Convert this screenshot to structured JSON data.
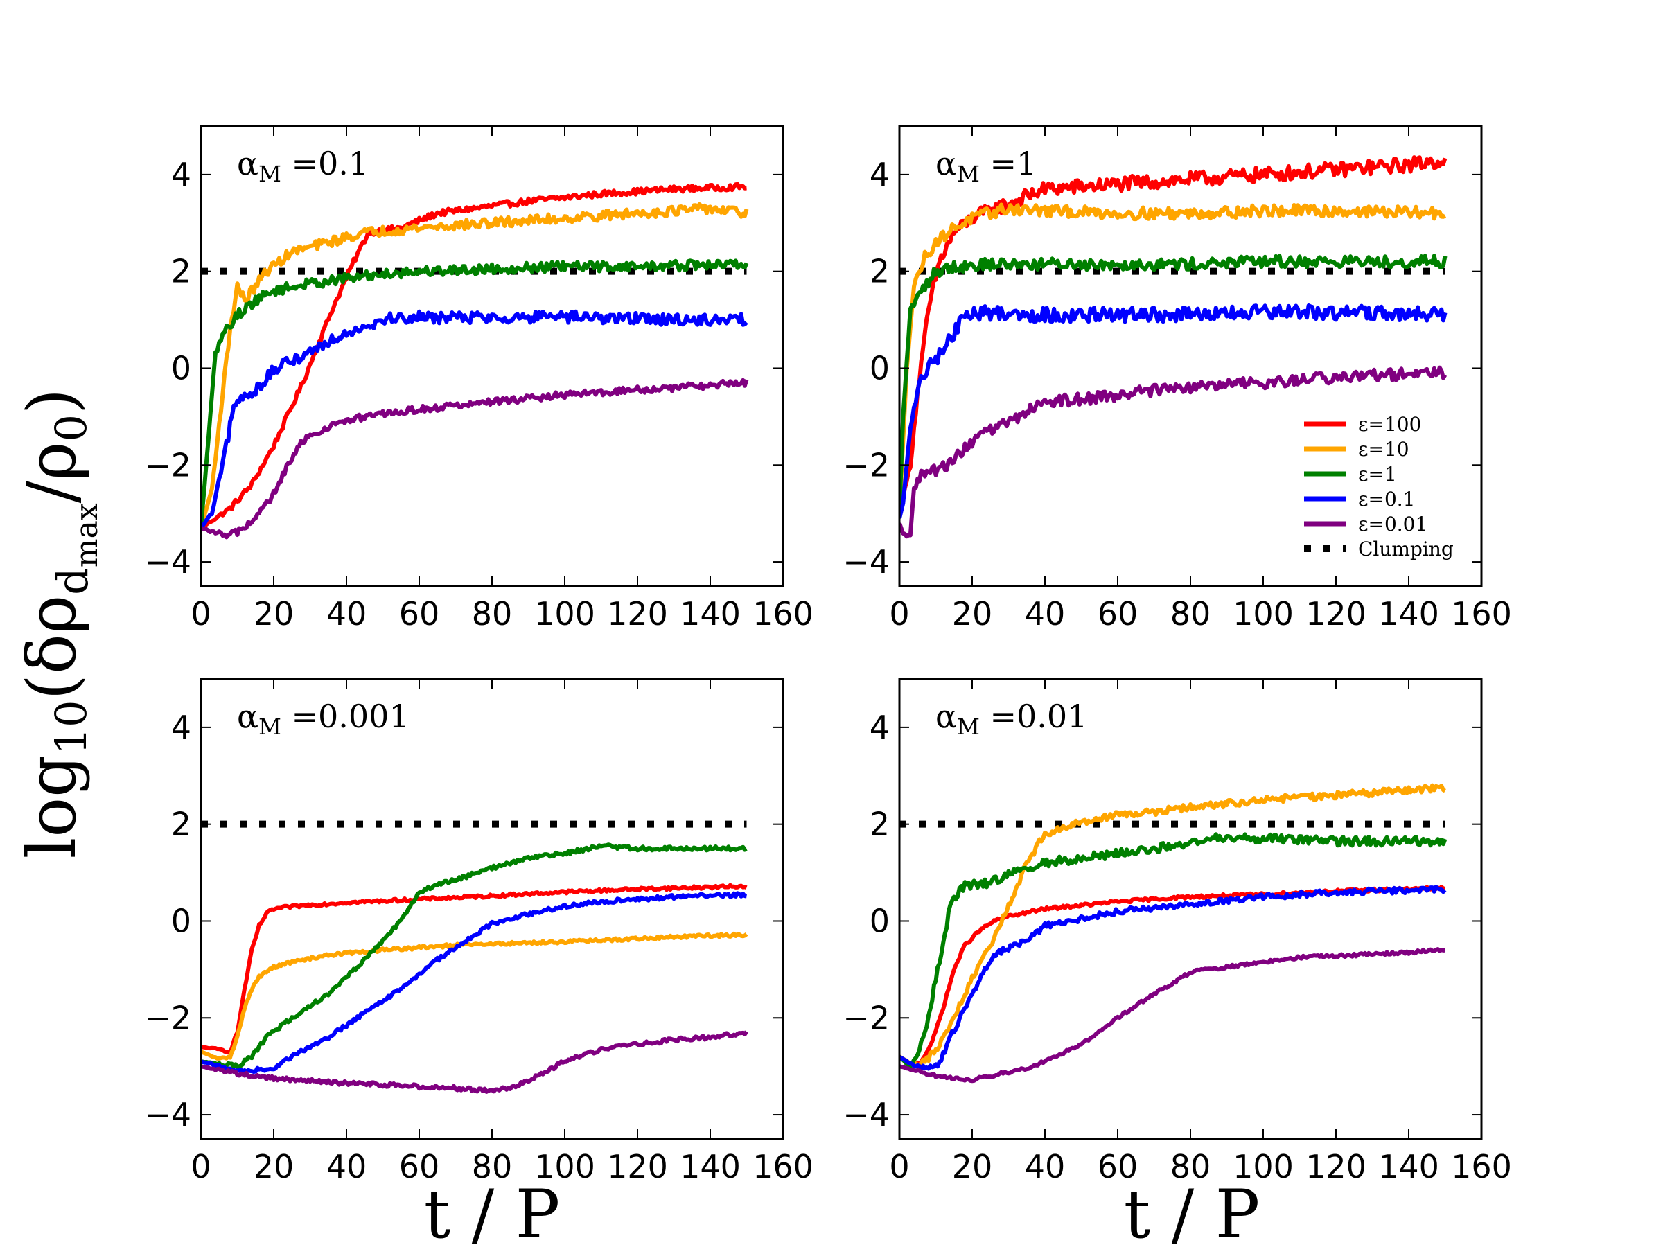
{
  "figure": {
    "ylabel_main": "log",
    "ylabel_sub10": "10",
    "ylabel_open": "(δρ",
    "ylabel_sub_d": "d",
    "ylabel_sub_max": "max",
    "ylabel_slash": "/ρ",
    "ylabel_sub0": "0",
    "ylabel_close": ")",
    "xlabel": "t / P"
  },
  "legend": {
    "entries": [
      {
        "label": "ε=100",
        "color": "#ff0000",
        "style": "solid"
      },
      {
        "label": "ε=10",
        "color": "#ffa500",
        "style": "solid"
      },
      {
        "label": "ε=1",
        "color": "#008000",
        "style": "solid"
      },
      {
        "label": "ε=0.1",
        "color": "#0000ff",
        "style": "solid"
      },
      {
        "label": "ε=0.01",
        "color": "#800080",
        "style": "solid"
      },
      {
        "label": "Clumping",
        "color": "#000000",
        "style": "dotted"
      }
    ]
  },
  "chart_data": [
    {
      "type": "line",
      "panel": "top-left",
      "annotation_prefix": "α",
      "annotation_sub": "M",
      "annotation_value": " =0.1",
      "xlim": [
        0,
        160
      ],
      "ylim": [
        -4.5,
        5
      ],
      "xticks": [
        0,
        20,
        40,
        60,
        80,
        100,
        120,
        140,
        160
      ],
      "yticks": [
        -4,
        -2,
        0,
        2,
        4
      ],
      "clumping_threshold": 2,
      "series": [
        {
          "name": "ε=100",
          "color": "#ff0000",
          "x": [
            0,
            4,
            8,
            14,
            20,
            28,
            36,
            42,
            46,
            55,
            65,
            75,
            90,
            110,
            130,
            150
          ],
          "y": [
            -3.3,
            -3.1,
            -2.9,
            -2.4,
            -1.6,
            -0.3,
            1.2,
            2.2,
            2.8,
            2.9,
            3.2,
            3.3,
            3.45,
            3.6,
            3.7,
            3.75
          ],
          "noise": 0.06
        },
        {
          "name": "ε=10",
          "color": "#ffa500",
          "x": [
            0,
            3,
            6,
            8,
            10,
            12,
            14,
            18,
            25,
            35,
            45,
            60,
            80,
            100,
            120,
            140,
            150
          ],
          "y": [
            -3.3,
            -2.5,
            -0.5,
            0.8,
            1.7,
            1.4,
            1.6,
            2.0,
            2.4,
            2.6,
            2.8,
            2.9,
            3.0,
            3.1,
            3.2,
            3.3,
            3.2
          ],
          "noise": 0.1
        },
        {
          "name": "ε=1",
          "color": "#008000",
          "x": [
            0,
            2,
            4,
            6,
            10,
            15,
            20,
            30,
            40,
            50,
            60,
            80,
            100,
            120,
            150
          ],
          "y": [
            -3.3,
            -1.5,
            0.3,
            0.7,
            1.1,
            1.4,
            1.6,
            1.75,
            1.85,
            1.95,
            2.0,
            2.05,
            2.1,
            2.1,
            2.15
          ],
          "noise": 0.1
        },
        {
          "name": "ε=0.1",
          "color": "#0000ff",
          "x": [
            0,
            3,
            6,
            9,
            10,
            15,
            20,
            30,
            40,
            50,
            55,
            70,
            90,
            110,
            130,
            150
          ],
          "y": [
            -3.3,
            -3.0,
            -2.0,
            -0.8,
            -0.7,
            -0.45,
            -0.05,
            0.35,
            0.75,
            1.0,
            1.05,
            1.05,
            1.05,
            1.05,
            1.0,
            1.0
          ],
          "noise": 0.12
        },
        {
          "name": "ε=0.01",
          "color": "#800080",
          "x": [
            0,
            4,
            8,
            12,
            16,
            20,
            24,
            28,
            35,
            45,
            60,
            80,
            100,
            120,
            140,
            150
          ],
          "y": [
            -3.3,
            -3.4,
            -3.45,
            -3.3,
            -3.0,
            -2.6,
            -2.0,
            -1.5,
            -1.2,
            -1.0,
            -0.85,
            -0.7,
            -0.55,
            -0.45,
            -0.35,
            -0.3
          ],
          "noise": 0.07
        }
      ]
    },
    {
      "type": "line",
      "panel": "top-right",
      "annotation_prefix": "α",
      "annotation_sub": "M",
      "annotation_value": " =1",
      "xlim": [
        0,
        160
      ],
      "ylim": [
        -4.5,
        5
      ],
      "xticks": [
        0,
        20,
        40,
        60,
        80,
        100,
        120,
        140,
        160
      ],
      "yticks": [
        -4,
        -2,
        0,
        2,
        4
      ],
      "clumping_threshold": 2,
      "series": [
        {
          "name": "ε=100",
          "color": "#ff0000",
          "x": [
            0,
            3,
            5,
            8,
            11,
            15,
            20,
            30,
            40,
            60,
            80,
            100,
            120,
            140,
            150
          ],
          "y": [
            -3.0,
            -2.0,
            -0.5,
            1.2,
            2.2,
            2.8,
            3.1,
            3.4,
            3.7,
            3.8,
            3.9,
            4.0,
            4.1,
            4.2,
            4.3
          ],
          "noise": 0.15
        },
        {
          "name": "ε=10",
          "color": "#ffa500",
          "x": [
            0,
            2,
            4,
            7,
            10,
            15,
            20,
            25,
            30,
            40,
            60,
            80,
            100,
            120,
            150
          ],
          "y": [
            -3.0,
            0.0,
            1.7,
            2.3,
            2.6,
            2.9,
            3.1,
            3.2,
            3.3,
            3.25,
            3.2,
            3.2,
            3.25,
            3.25,
            3.2
          ],
          "noise": 0.12
        },
        {
          "name": "ε=1",
          "color": "#008000",
          "x": [
            0,
            1,
            3,
            6,
            10,
            15,
            25,
            40,
            60,
            80,
            100,
            120,
            150
          ],
          "y": [
            -3.0,
            -1.0,
            1.2,
            1.6,
            2.0,
            2.1,
            2.15,
            2.15,
            2.15,
            2.15,
            2.2,
            2.2,
            2.2
          ],
          "noise": 0.12
        },
        {
          "name": "ε=0.1",
          "color": "#0000ff",
          "x": [
            0,
            1,
            3,
            6,
            10,
            14,
            18,
            25,
            40,
            60,
            80,
            100,
            120,
            150
          ],
          "y": [
            -3.1,
            -2.8,
            -1.2,
            -0.2,
            0.2,
            0.6,
            1.1,
            1.15,
            1.1,
            1.1,
            1.1,
            1.15,
            1.15,
            1.1
          ],
          "noise": 0.15
        },
        {
          "name": "ε=0.01",
          "color": "#800080",
          "x": [
            0,
            1,
            2,
            3,
            4,
            6,
            10,
            15,
            20,
            30,
            40,
            55,
            70,
            90,
            110,
            130,
            150
          ],
          "y": [
            -3.2,
            -3.4,
            -3.45,
            -3.45,
            -2.5,
            -2.2,
            -2.1,
            -1.9,
            -1.5,
            -1.1,
            -0.7,
            -0.6,
            -0.45,
            -0.35,
            -0.25,
            -0.15,
            -0.1
          ],
          "noise": 0.12
        }
      ]
    },
    {
      "type": "line",
      "panel": "bottom-left",
      "annotation_prefix": "α",
      "annotation_sub": "M",
      "annotation_value": " =0.001",
      "xlim": [
        0,
        160
      ],
      "ylim": [
        -4.5,
        5
      ],
      "xticks": [
        0,
        20,
        40,
        60,
        80,
        100,
        120,
        140,
        160
      ],
      "yticks": [
        -4,
        -2,
        0,
        2,
        4
      ],
      "clumping_threshold": 2,
      "series": [
        {
          "name": "ε=100",
          "color": "#ff0000",
          "x": [
            0,
            5,
            8,
            10,
            12,
            14,
            16,
            18,
            20,
            25,
            30,
            40,
            60,
            80,
            100,
            120,
            150
          ],
          "y": [
            -2.6,
            -2.65,
            -2.7,
            -2.3,
            -1.4,
            -0.6,
            -0.1,
            0.15,
            0.25,
            0.3,
            0.33,
            0.38,
            0.45,
            0.52,
            0.6,
            0.66,
            0.72
          ],
          "noise": 0.03
        },
        {
          "name": "ε=10",
          "color": "#ffa500",
          "x": [
            0,
            5,
            8,
            10,
            12,
            14,
            16,
            20,
            25,
            35,
            50,
            70,
            90,
            110,
            130,
            150
          ],
          "y": [
            -2.7,
            -2.85,
            -2.8,
            -2.4,
            -1.8,
            -1.4,
            -1.15,
            -0.95,
            -0.85,
            -0.7,
            -0.6,
            -0.5,
            -0.45,
            -0.4,
            -0.33,
            -0.28
          ],
          "noise": 0.03
        },
        {
          "name": "ε=1",
          "color": "#008000",
          "x": [
            0,
            5,
            10,
            14,
            18,
            25,
            35,
            45,
            55,
            60,
            65,
            70,
            80,
            90,
            100,
            110,
            120,
            150
          ],
          "y": [
            -2.9,
            -2.95,
            -3.0,
            -2.8,
            -2.4,
            -2.0,
            -1.5,
            -0.8,
            0.0,
            0.6,
            0.75,
            0.85,
            1.1,
            1.3,
            1.4,
            1.55,
            1.5,
            1.5
          ],
          "noise": 0.04
        },
        {
          "name": "ε=0.1",
          "color": "#0000ff",
          "x": [
            0,
            10,
            20,
            25,
            35,
            45,
            55,
            65,
            75,
            80,
            90,
            100,
            110,
            130,
            150
          ],
          "y": [
            -2.9,
            -3.1,
            -3.05,
            -2.8,
            -2.4,
            -1.9,
            -1.4,
            -0.8,
            -0.3,
            -0.05,
            0.15,
            0.3,
            0.4,
            0.5,
            0.55
          ],
          "noise": 0.04
        },
        {
          "name": "ε=0.01",
          "color": "#800080",
          "x": [
            0,
            10,
            20,
            30,
            40,
            50,
            60,
            70,
            80,
            85,
            90,
            95,
            100,
            110,
            120,
            130,
            140,
            150
          ],
          "y": [
            -3.0,
            -3.15,
            -3.25,
            -3.3,
            -3.35,
            -3.38,
            -3.42,
            -3.45,
            -3.5,
            -3.45,
            -3.3,
            -3.1,
            -2.9,
            -2.65,
            -2.55,
            -2.45,
            -2.4,
            -2.3
          ],
          "noise": 0.04
        }
      ]
    },
    {
      "type": "line",
      "panel": "bottom-right",
      "annotation_prefix": "α",
      "annotation_sub": "M",
      "annotation_value": " =0.01",
      "xlim": [
        0,
        160
      ],
      "ylim": [
        -4.5,
        5
      ],
      "xticks": [
        0,
        20,
        40,
        60,
        80,
        100,
        120,
        140,
        160
      ],
      "yticks": [
        -4,
        -2,
        0,
        2,
        4
      ],
      "clumping_threshold": 2,
      "series": [
        {
          "name": "ε=100",
          "color": "#ff0000",
          "x": [
            0,
            3,
            6,
            9,
            12,
            15,
            18,
            22,
            26,
            30,
            40,
            60,
            80,
            100,
            120,
            150
          ],
          "y": [
            -2.8,
            -3.0,
            -2.9,
            -2.5,
            -1.8,
            -1.0,
            -0.5,
            -0.2,
            0.0,
            0.1,
            0.25,
            0.4,
            0.5,
            0.55,
            0.62,
            0.68
          ],
          "noise": 0.03
        },
        {
          "name": "ε=10",
          "color": "#ffa500",
          "x": [
            0,
            5,
            10,
            15,
            20,
            25,
            30,
            35,
            40,
            50,
            60,
            70,
            80,
            100,
            120,
            150
          ],
          "y": [
            -2.8,
            -3.0,
            -2.7,
            -2.0,
            -1.2,
            -0.5,
            0.3,
            1.2,
            1.8,
            2.05,
            2.2,
            2.25,
            2.35,
            2.5,
            2.6,
            2.75
          ],
          "noise": 0.07
        },
        {
          "name": "ε=1",
          "color": "#008000",
          "x": [
            0,
            3,
            5,
            8,
            11,
            14,
            17,
            20,
            25,
            30,
            40,
            60,
            80,
            90,
            100,
            120,
            150
          ],
          "y": [
            -2.8,
            -3.0,
            -2.8,
            -2.0,
            -0.8,
            0.3,
            0.7,
            0.75,
            0.8,
            0.95,
            1.2,
            1.4,
            1.6,
            1.75,
            1.7,
            1.65,
            1.65
          ],
          "noise": 0.09
        },
        {
          "name": "ε=0.1",
          "color": "#0000ff",
          "x": [
            0,
            4,
            8,
            11,
            14,
            18,
            22,
            26,
            30,
            35,
            40,
            60,
            80,
            100,
            120,
            150
          ],
          "y": [
            -2.8,
            -3.0,
            -3.05,
            -2.95,
            -2.4,
            -1.8,
            -1.2,
            -0.7,
            -0.55,
            -0.4,
            -0.1,
            0.2,
            0.35,
            0.5,
            0.6,
            0.65
          ],
          "noise": 0.06
        },
        {
          "name": "ε=0.01",
          "color": "#800080",
          "x": [
            0,
            5,
            10,
            15,
            20,
            25,
            30,
            35,
            40,
            50,
            60,
            70,
            75,
            80,
            90,
            100,
            110,
            120,
            140,
            150
          ],
          "y": [
            -3.0,
            -3.1,
            -3.2,
            -3.25,
            -3.28,
            -3.2,
            -3.12,
            -3.05,
            -2.9,
            -2.55,
            -2.0,
            -1.5,
            -1.3,
            -1.05,
            -0.95,
            -0.85,
            -0.75,
            -0.72,
            -0.65,
            -0.58
          ],
          "noise": 0.03
        }
      ]
    }
  ]
}
